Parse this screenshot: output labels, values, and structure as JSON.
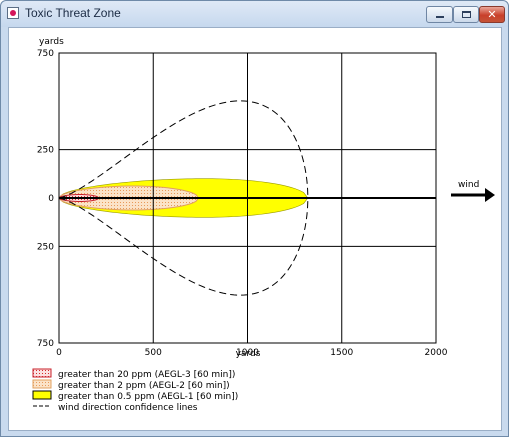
{
  "window": {
    "title": "Toxic Threat Zone",
    "buttons": {
      "minimize": "minimize-icon",
      "maximize": "maximize-icon",
      "close": "close-icon"
    }
  },
  "chart_data": {
    "type": "area",
    "title": "",
    "xlabel": "yards",
    "ylabel": "yards",
    "x_ticks": [
      "0",
      "500",
      "1000",
      "1500",
      "2000"
    ],
    "y_ticks": [
      "750",
      "250",
      "0",
      "250",
      "750"
    ],
    "xlim": [
      0,
      2000
    ],
    "ylim": [
      -750,
      750
    ],
    "grid": true,
    "wind_label": "wind",
    "zones": [
      {
        "name": "greater than 0.5 ppm (AEGL-1 [60 min])",
        "color": "#ffff00",
        "length": 1320,
        "max_halfwidth": 100,
        "peak_x": 780
      },
      {
        "name": "greater than 2 ppm (AEGL-2 [60 min])",
        "color": "#f7c89a",
        "length": 740,
        "max_halfwidth": 62,
        "peak_x": 390
      },
      {
        "name": "greater than 20 ppm (AEGL-3 [60 min])",
        "color": "#e8303a",
        "length": 210,
        "max_halfwidth": 18,
        "peak_x": 110
      }
    ],
    "confidence_lines": {
      "name": "wind direction confidence lines",
      "max_x": 1320,
      "max_halfwidth": 560,
      "peak_x": 1110
    },
    "legend": [
      {
        "label": "greater than 20 ppm (AEGL-3 [60 min])",
        "swatch": "red-dotted"
      },
      {
        "label": "greater than 2 ppm (AEGL-2 [60 min])",
        "swatch": "orange-dotted"
      },
      {
        "label": "greater than 0.5 ppm (AEGL-1 [60 min])",
        "swatch": "yellow"
      },
      {
        "label": "wind direction confidence lines",
        "swatch": "dashed-line"
      }
    ]
  }
}
